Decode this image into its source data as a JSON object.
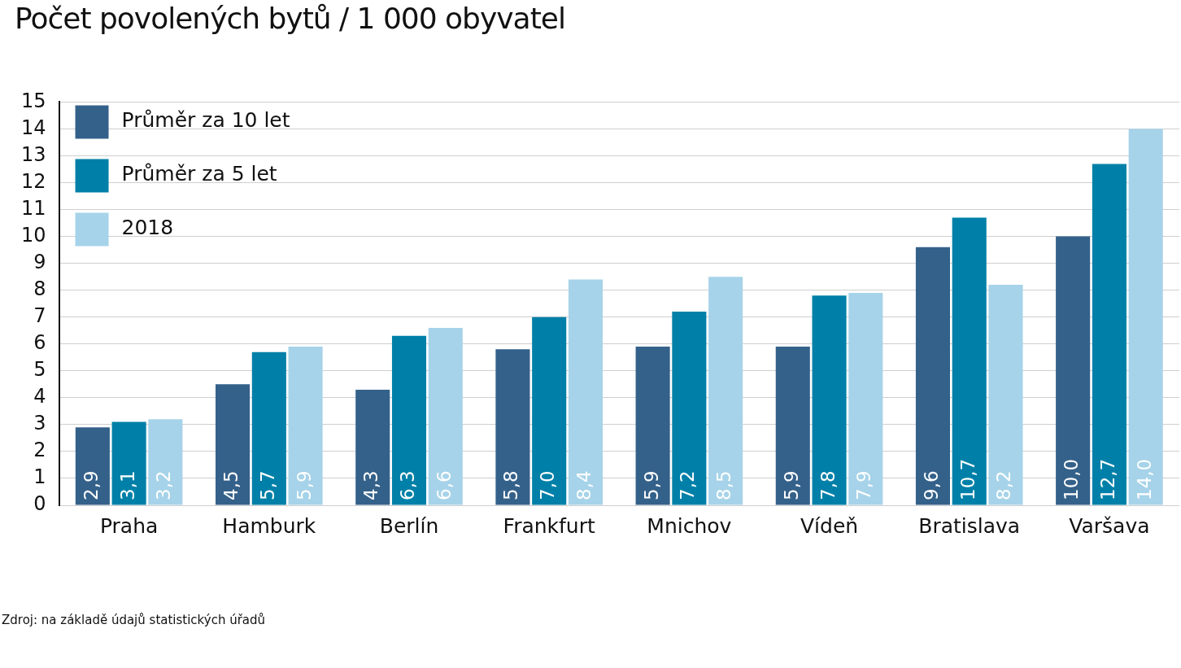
{
  "chart_data": {
    "type": "bar",
    "title": "Počet povolených bytů / 1 000 obyvatel",
    "categories": [
      "Praha",
      "Hamburk",
      "Berlín",
      "Frankfurt",
      "Mnichov",
      "Vídeň",
      "Bratislava",
      "Varšava"
    ],
    "series": [
      {
        "name": "Průměr za 10 let",
        "color": "#34618a",
        "values": [
          2.9,
          4.5,
          4.3,
          5.8,
          5.9,
          5.9,
          9.6,
          10.0
        ],
        "value_labels": [
          "2,9",
          "4,5",
          "4,3",
          "5,8",
          "5,9",
          "5,9",
          "9,6",
          "10,0"
        ]
      },
      {
        "name": "Průměr za 5 let",
        "color": "#0080a8",
        "values": [
          3.1,
          5.7,
          6.3,
          7.0,
          7.2,
          7.8,
          10.7,
          12.7
        ],
        "value_labels": [
          "3,1",
          "5,7",
          "6,3",
          "7,0",
          "7,2",
          "7,8",
          "10,7",
          "12,7"
        ]
      },
      {
        "name": "2018",
        "color": "#a6d3e9",
        "values": [
          3.2,
          5.9,
          6.6,
          8.4,
          8.5,
          7.9,
          8.2,
          14.0
        ],
        "value_labels": [
          "3,2",
          "5,9",
          "6,6",
          "8,4",
          "8,5",
          "7,9",
          "8,2",
          "14,0"
        ]
      }
    ],
    "ylim": [
      0,
      15
    ],
    "yticks": [
      0,
      1,
      2,
      3,
      4,
      5,
      6,
      7,
      8,
      9,
      10,
      11,
      12,
      13,
      14,
      15
    ],
    "grid": "y",
    "legend": "top left",
    "annotations": [
      "Zdroj: na základě údajů statistických úřadů"
    ]
  }
}
